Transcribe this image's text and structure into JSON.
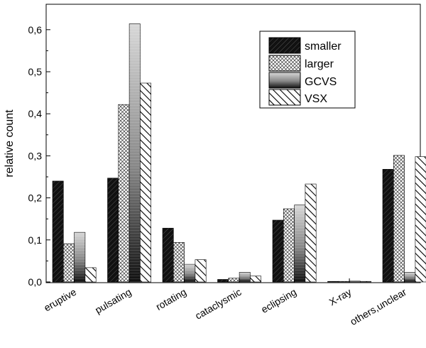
{
  "chart_data": {
    "type": "bar",
    "title": "",
    "xlabel": "",
    "ylabel": "relative count",
    "ylim": [
      0,
      0.66
    ],
    "yticks": [
      "0,0",
      "0,1",
      "0,2",
      "0,3",
      "0,4",
      "0,5",
      "0,6"
    ],
    "ytick_values": [
      0,
      0.1,
      0.2,
      0.3,
      0.4,
      0.5,
      0.6
    ],
    "categories": [
      "eruptive",
      "pulsating",
      "rotating",
      "cataclysmic",
      "eclipsing",
      "X-ray",
      "others,unclear"
    ],
    "series": [
      {
        "name": "smaller",
        "values": [
          0.24,
          0.247,
          0.128,
          0.006,
          0.147,
          0.001,
          0.268
        ]
      },
      {
        "name": "larger",
        "values": [
          0.091,
          0.422,
          0.094,
          0.009,
          0.174,
          0.001,
          0.301
        ]
      },
      {
        "name": "GCVS",
        "values": [
          0.118,
          0.614,
          0.042,
          0.023,
          0.183,
          0.002,
          0.023
        ]
      },
      {
        "name": "VSX",
        "values": [
          0.034,
          0.473,
          0.053,
          0.014,
          0.233,
          0.001,
          0.298
        ]
      }
    ],
    "legend_position": "top-right",
    "grid": false
  }
}
